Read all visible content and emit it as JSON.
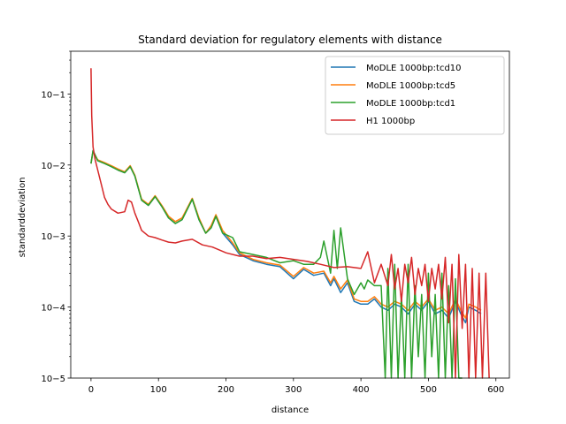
{
  "chart_data": {
    "type": "line",
    "title": "Standard deviation for regulatory elements with distance",
    "xlabel": "distance",
    "ylabel": "standarddeviation",
    "xlim": [
      -30,
      620
    ],
    "ylim": [
      1e-05,
      0.4
    ],
    "yscale": "log",
    "grid": false,
    "legend_position": "top-right",
    "x_ticks": [
      0,
      100,
      200,
      300,
      400,
      500,
      600
    ],
    "x_tick_labels": [
      "0",
      "100",
      "200",
      "300",
      "400",
      "500",
      "600"
    ],
    "y_ticks": [
      1e-05,
      0.0001,
      0.001,
      0.01,
      0.1
    ],
    "y_tick_labels": [
      "10−5",
      "10−4",
      "10−3",
      "10−2",
      "10−1"
    ],
    "series": [
      {
        "name": "MoDLE 1000bp:tcd10",
        "color": "#1f77b4",
        "x": [
          0,
          3,
          10,
          20,
          30,
          40,
          50,
          58,
          65,
          75,
          85,
          95,
          105,
          115,
          125,
          135,
          150,
          160,
          170,
          178,
          185,
          195,
          210,
          220,
          240,
          260,
          280,
          300,
          315,
          330,
          345,
          355,
          360,
          370,
          380,
          390,
          400,
          410,
          420,
          430,
          440,
          450,
          460,
          470,
          480,
          490,
          500,
          510,
          520,
          530,
          540,
          548,
          555,
          560,
          570,
          578
        ],
        "values": [
          0.0105,
          0.016,
          0.0115,
          0.0105,
          0.0095,
          0.0085,
          0.0078,
          0.0095,
          0.007,
          0.0032,
          0.0027,
          0.0036,
          0.0026,
          0.0018,
          0.0015,
          0.0017,
          0.0033,
          0.0017,
          0.0011,
          0.0013,
          0.0019,
          0.0011,
          0.00075,
          0.00055,
          0.00045,
          0.0004,
          0.00037,
          0.00025,
          0.00034,
          0.00028,
          0.0003,
          0.0002,
          0.00025,
          0.00016,
          0.00022,
          0.00012,
          0.00011,
          0.00011,
          0.00013,
          0.0001,
          9e-05,
          0.00011,
          0.0001,
          8e-05,
          0.00011,
          9e-05,
          0.00012,
          8e-05,
          9e-05,
          7e-05,
          0.00012,
          8e-05,
          6e-05,
          0.0001,
          9e-05,
          8e-05
        ]
      },
      {
        "name": "MoDLE 1000bp:tcd5",
        "color": "#ff7f0e",
        "x": [
          0,
          3,
          10,
          20,
          30,
          40,
          50,
          58,
          65,
          75,
          85,
          95,
          105,
          115,
          125,
          135,
          150,
          160,
          170,
          178,
          185,
          195,
          210,
          220,
          240,
          260,
          280,
          300,
          315,
          330,
          345,
          355,
          360,
          370,
          380,
          390,
          400,
          410,
          420,
          430,
          440,
          450,
          460,
          470,
          480,
          490,
          500,
          510,
          520,
          530,
          540,
          548,
          555,
          560,
          570,
          578
        ],
        "values": [
          0.0105,
          0.0155,
          0.0118,
          0.0108,
          0.0098,
          0.0088,
          0.008,
          0.0098,
          0.0072,
          0.0033,
          0.0028,
          0.0037,
          0.0027,
          0.0019,
          0.0016,
          0.0018,
          0.0034,
          0.0018,
          0.0011,
          0.0014,
          0.002,
          0.0012,
          0.0008,
          0.00058,
          0.00047,
          0.00042,
          0.00039,
          0.00027,
          0.00036,
          0.0003,
          0.00032,
          0.00022,
          0.00027,
          0.00018,
          0.00024,
          0.00013,
          0.00012,
          0.00012,
          0.00014,
          0.00011,
          0.0001,
          0.00012,
          0.00011,
          9e-05,
          0.00012,
          0.0001,
          0.00013,
          9e-05,
          0.0001,
          8e-05,
          0.00013,
          9e-05,
          7e-05,
          0.00011,
          0.0001,
          9e-05
        ]
      },
      {
        "name": "MoDLE 1000bp:tcd1",
        "color": "#2ca02c",
        "x": [
          0,
          3,
          10,
          20,
          30,
          40,
          50,
          58,
          65,
          75,
          85,
          95,
          105,
          115,
          125,
          135,
          150,
          160,
          170,
          178,
          185,
          195,
          210,
          220,
          240,
          260,
          280,
          300,
          315,
          330,
          340,
          345,
          355,
          360,
          365,
          370,
          380,
          390,
          400,
          405,
          410,
          420,
          430,
          436,
          440,
          445,
          450,
          455,
          460,
          465,
          470,
          475,
          480,
          485,
          490,
          495,
          500,
          505,
          510,
          515,
          520,
          525,
          530,
          535,
          540,
          545,
          550
        ],
        "values": [
          0.0105,
          0.016,
          0.0115,
          0.0105,
          0.0095,
          0.0085,
          0.0078,
          0.0095,
          0.007,
          0.0032,
          0.0027,
          0.0036,
          0.0026,
          0.0018,
          0.0015,
          0.0017,
          0.0033,
          0.0017,
          0.0011,
          0.0013,
          0.0019,
          0.0011,
          0.00095,
          0.0006,
          0.00055,
          0.0005,
          0.00042,
          0.00045,
          0.0004,
          0.0004,
          0.0005,
          0.00085,
          0.0003,
          0.0012,
          0.00035,
          0.0013,
          0.00025,
          0.00015,
          0.00022,
          0.00018,
          0.00024,
          0.0002,
          0.0002,
          1e-05,
          0.00035,
          1e-05,
          0.0004,
          1e-05,
          0.00015,
          1e-05,
          0.0004,
          1e-05,
          0.0002,
          2e-05,
          0.00015,
          1e-05,
          0.0003,
          2e-05,
          0.00015,
          1e-05,
          0.0003,
          1e-05,
          0.0002,
          1e-05,
          0.00025,
          1e-05,
          1e-05
        ]
      },
      {
        "name": "H1 1000bp",
        "color": "#d62728",
        "x": [
          0,
          1,
          3,
          6,
          10,
          15,
          20,
          25,
          30,
          40,
          50,
          55,
          60,
          65,
          70,
          75,
          85,
          95,
          105,
          115,
          125,
          135,
          150,
          165,
          180,
          200,
          220,
          240,
          260,
          280,
          300,
          320,
          340,
          360,
          380,
          400,
          410,
          420,
          430,
          440,
          445,
          450,
          455,
          460,
          465,
          470,
          475,
          480,
          485,
          490,
          495,
          500,
          505,
          510,
          515,
          520,
          525,
          530,
          535,
          540,
          545,
          550,
          555,
          560,
          565,
          570,
          575,
          580,
          585,
          590
        ],
        "values": [
          0.23,
          0.05,
          0.018,
          0.012,
          0.0085,
          0.0055,
          0.0035,
          0.0028,
          0.0024,
          0.0021,
          0.0022,
          0.0032,
          0.003,
          0.0021,
          0.0016,
          0.0012,
          0.001,
          0.00095,
          0.00088,
          0.00082,
          0.0008,
          0.00085,
          0.0009,
          0.00075,
          0.0007,
          0.00058,
          0.00052,
          0.00052,
          0.00048,
          0.0005,
          0.00047,
          0.00044,
          0.0004,
          0.00036,
          0.00037,
          0.00035,
          0.0006,
          0.00022,
          0.0004,
          0.0002,
          0.00055,
          0.00018,
          0.00035,
          0.00012,
          0.0004,
          0.00022,
          0.0005,
          0.00015,
          0.00035,
          0.0002,
          0.0004,
          0.00012,
          0.00035,
          0.00018,
          0.0004,
          0.00013,
          0.0005,
          6e-05,
          0.0004,
          1e-05,
          0.00055,
          5e-05,
          0.0004,
          1e-05,
          0.00035,
          1e-05,
          0.0003,
          1e-05,
          0.0003,
          1e-05
        ]
      }
    ]
  }
}
